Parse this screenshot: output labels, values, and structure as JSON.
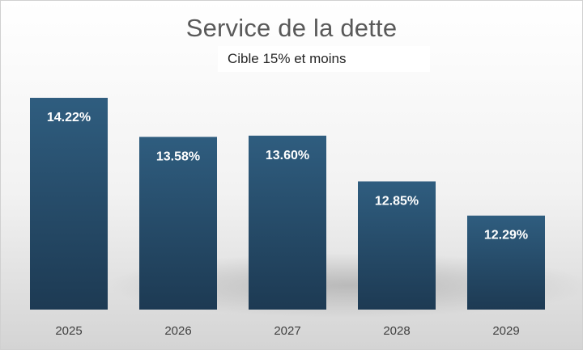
{
  "chart_data": {
    "type": "bar",
    "title": "Service de la dette",
    "subtitle": "Cible 15% et moins",
    "categories": [
      "2025",
      "2026",
      "2027",
      "2028",
      "2029"
    ],
    "values": [
      14.22,
      13.58,
      13.6,
      12.85,
      12.29
    ],
    "value_labels": [
      "14.22%",
      "13.58%",
      "13.60%",
      "12.85%",
      "12.29%"
    ],
    "unit": "%",
    "xlabel": "",
    "ylabel": "",
    "ylim": [
      10.75,
      14.4
    ],
    "grid": false,
    "legend": "none",
    "colors": {
      "bar_top": "#2f5d7f",
      "bar_bottom": "#1d3a53",
      "background_top": "#ffffff",
      "background_bottom": "#d4d4d4"
    }
  }
}
